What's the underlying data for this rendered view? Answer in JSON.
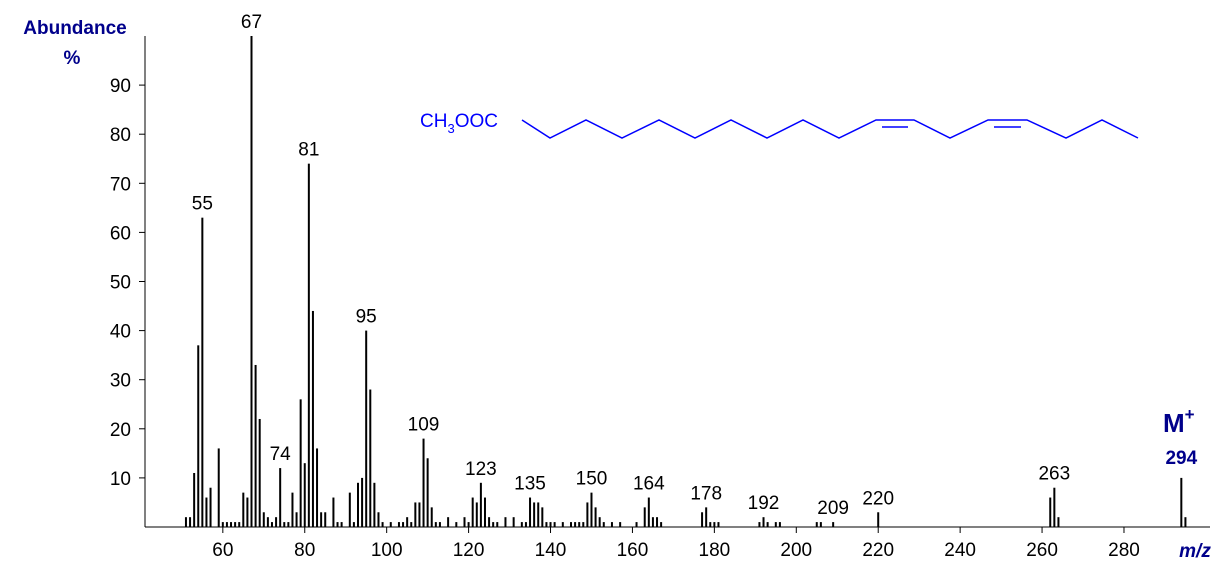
{
  "chart_data": {
    "type": "spectrum",
    "y_label_top": "Abundance",
    "y_label_unit": "%",
    "x_label": "m/z",
    "molecular_ion": {
      "symbol": "M",
      "charge": "+"
    },
    "structure": {
      "parts": [
        "CH",
        "3",
        "OOC"
      ]
    },
    "color": "#000000",
    "label_color": "#00008b",
    "xlim": [
      41,
      301
    ],
    "ylim": [
      0,
      100
    ],
    "xticks": [
      60,
      80,
      100,
      120,
      140,
      160,
      180,
      200,
      220,
      240,
      260,
      280
    ],
    "yticks": [
      10,
      20,
      30,
      40,
      50,
      60,
      70,
      80,
      90
    ],
    "x": [
      51,
      52,
      53,
      54,
      55,
      56,
      57,
      59,
      60,
      61,
      62,
      63,
      64,
      65,
      66,
      67,
      68,
      69,
      70,
      71,
      72,
      73,
      74,
      75,
      76,
      77,
      78,
      79,
      80,
      81,
      82,
      83,
      84,
      85,
      87,
      88,
      89,
      91,
      92,
      93,
      94,
      95,
      96,
      97,
      98,
      99,
      101,
      103,
      104,
      105,
      106,
      107,
      108,
      109,
      110,
      111,
      112,
      113,
      115,
      117,
      119,
      120,
      121,
      122,
      123,
      124,
      125,
      126,
      127,
      129,
      131,
      133,
      134,
      135,
      136,
      137,
      138,
      139,
      140,
      141,
      143,
      145,
      146,
      147,
      148,
      149,
      150,
      151,
      152,
      153,
      155,
      157,
      161,
      163,
      164,
      165,
      166,
      167,
      177,
      178,
      179,
      180,
      181,
      191,
      192,
      193,
      195,
      196,
      205,
      206,
      209,
      220,
      262,
      263,
      264,
      294,
      295
    ],
    "values": [
      2,
      2,
      11,
      37,
      63,
      6,
      8,
      16,
      1,
      1,
      1,
      1,
      1,
      7,
      6,
      100,
      33,
      22,
      3,
      2,
      1,
      2,
      12,
      1,
      1,
      7,
      3,
      26,
      13,
      74,
      44,
      16,
      3,
      3,
      6,
      1,
      1,
      7,
      1,
      9,
      10,
      40,
      28,
      9,
      3,
      1,
      1,
      1,
      1,
      2,
      1,
      5,
      5,
      18,
      14,
      4,
      1,
      1,
      2,
      1,
      2,
      1,
      6,
      5,
      9,
      6,
      2,
      1,
      1,
      2,
      2,
      1,
      1,
      6,
      5,
      5,
      4,
      1,
      1,
      1,
      1,
      1,
      1,
      1,
      1,
      5,
      7,
      4,
      2,
      1,
      1,
      1,
      1,
      4,
      6,
      2,
      2,
      1,
      3,
      4,
      1,
      1,
      1,
      1,
      2,
      1,
      1,
      1,
      1,
      1,
      1,
      3,
      6,
      8,
      2,
      10,
      2
    ],
    "peak_labels": [
      55,
      67,
      74,
      81,
      95,
      109,
      123,
      135,
      150,
      164,
      178,
      192,
      209,
      220,
      263,
      294
    ]
  }
}
